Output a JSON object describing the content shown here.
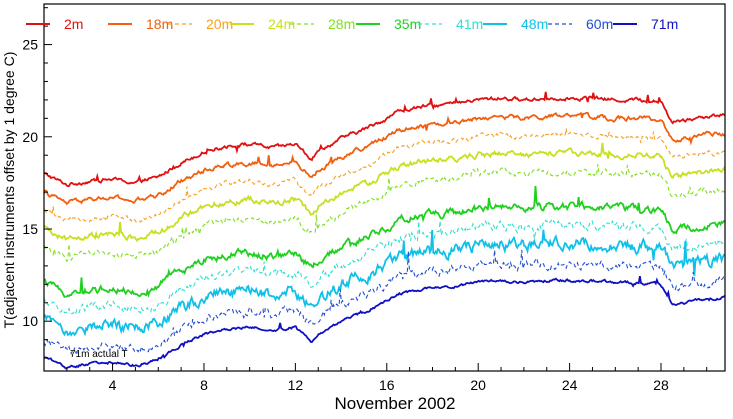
{
  "chart_data": {
    "type": "line",
    "title": "",
    "xlabel": "November 2002",
    "ylabel": "T(adjacent instruments offset by 1 degree C)",
    "xlim": [
      1,
      30.8
    ],
    "ylim": [
      7.3,
      27.2
    ],
    "x_ticks": [
      4,
      8,
      12,
      16,
      20,
      24,
      28
    ],
    "y_ticks": [
      10,
      15,
      20,
      25
    ],
    "grid": false,
    "legend": "top",
    "annotation": "71m actual T",
    "x": [
      1,
      2,
      3,
      4,
      5,
      6,
      6.5,
      7,
      8,
      9,
      10,
      11,
      12,
      12.7,
      13,
      14,
      15,
      16,
      16.5,
      17,
      18,
      19,
      20,
      21,
      22,
      23,
      24,
      25,
      26,
      27,
      28,
      28.5,
      29,
      30,
      30.8
    ],
    "base_profile": [
      0.0,
      -0.6,
      -0.4,
      -0.3,
      -0.5,
      -0.2,
      0.2,
      0.6,
      1.2,
      1.5,
      1.6,
      1.4,
      1.6,
      0.8,
      1.2,
      1.9,
      2.4,
      3.0,
      3.4,
      3.5,
      3.7,
      3.8,
      4.0,
      4.1,
      4.0,
      4.1,
      4.1,
      4.1,
      4.0,
      4.0,
      3.9,
      2.8,
      2.9,
      3.1,
      3.2
    ],
    "series": [
      {
        "label": "2m",
        "offset": 18.0,
        "color": "#e01010",
        "dash": "solid",
        "noise": 0.25
      },
      {
        "label": "18m",
        "offset": 17.0,
        "color": "#f06010",
        "dash": "solid",
        "noise": 0.3
      },
      {
        "label": "20m",
        "offset": 16.0,
        "color": "#f8a020",
        "dash": "dashed",
        "noise": 0.35
      },
      {
        "label": "24m",
        "offset": 15.0,
        "color": "#c8e020",
        "dash": "solid",
        "noise": 0.4
      },
      {
        "label": "28m",
        "offset": 14.0,
        "color": "#80e020",
        "dash": "dashed",
        "noise": 0.45
      },
      {
        "label": "35m",
        "offset": 12.1,
        "color": "#20d020",
        "dash": "solid",
        "noise": 0.5
      },
      {
        "label": "41m",
        "offset": 11.1,
        "color": "#30e0d0",
        "dash": "dashed",
        "noise": 0.6
      },
      {
        "label": "48m",
        "offset": 10.1,
        "color": "#10c0e8",
        "dash": "solid",
        "noise": 0.8
      },
      {
        "label": "60m",
        "offset": 9.0,
        "color": "#2050d0",
        "dash": "dashed",
        "noise": 0.6
      },
      {
        "label": "71m",
        "offset": 8.1,
        "color": "#1010c0",
        "dash": "solid",
        "noise": 0.2
      }
    ]
  }
}
